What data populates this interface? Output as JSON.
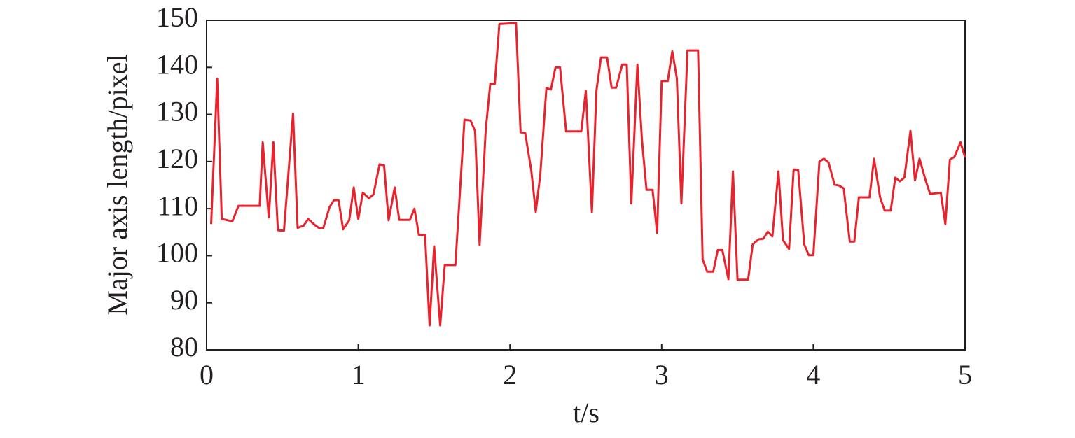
{
  "chart_data": {
    "type": "line",
    "xlabel": "t/s",
    "ylabel": "Major axis length/pixel",
    "x": [
      0.03,
      0.07,
      0.1,
      0.17,
      0.21,
      0.35,
      0.37,
      0.41,
      0.44,
      0.47,
      0.51,
      0.57,
      0.6,
      0.64,
      0.67,
      0.71,
      0.74,
      0.77,
      0.81,
      0.84,
      0.87,
      0.9,
      0.94,
      0.97,
      1.0,
      1.03,
      1.07,
      1.1,
      1.14,
      1.17,
      1.2,
      1.24,
      1.27,
      1.34,
      1.37,
      1.4,
      1.44,
      1.47,
      1.5,
      1.54,
      1.57,
      1.64,
      1.7,
      1.74,
      1.77,
      1.8,
      1.84,
      1.87,
      1.9,
      1.93,
      2.04,
      2.07,
      2.1,
      2.14,
      2.17,
      2.2,
      2.24,
      2.27,
      2.3,
      2.33,
      2.37,
      2.47,
      2.5,
      2.54,
      2.57,
      2.6,
      2.64,
      2.67,
      2.7,
      2.74,
      2.77,
      2.8,
      2.84,
      2.87,
      2.9,
      2.94,
      2.97,
      3.0,
      3.04,
      3.07,
      3.1,
      3.13,
      3.17,
      3.24,
      3.27,
      3.3,
      3.34,
      3.37,
      3.4,
      3.44,
      3.47,
      3.5,
      3.57,
      3.6,
      3.64,
      3.67,
      3.7,
      3.73,
      3.77,
      3.8,
      3.84,
      3.87,
      3.9,
      3.94,
      3.97,
      4.0,
      4.04,
      4.07,
      4.1,
      4.14,
      4.17,
      4.2,
      4.24,
      4.27,
      4.3,
      4.37,
      4.4,
      4.44,
      4.47,
      4.51,
      4.54,
      4.57,
      4.6,
      4.64,
      4.67,
      4.7,
      4.74,
      4.77,
      4.84,
      4.87,
      4.9,
      4.93,
      4.97,
      5.0
    ],
    "series": [
      {
        "color": "#e8232d",
        "values": [
          106.7,
          137.6,
          107.8,
          107.3,
          110.6,
          110.6,
          124.1,
          108.1,
          124.1,
          105.4,
          105.3,
          130.2,
          105.9,
          106.4,
          107.8,
          106.6,
          105.9,
          105.9,
          110.3,
          111.8,
          111.8,
          105.6,
          107.5,
          114.5,
          107.8,
          113.4,
          112.2,
          113.0,
          119.4,
          119.2,
          107.5,
          114.5,
          107.6,
          107.6,
          110.0,
          104.4,
          104.4,
          85.2,
          102.0,
          85.2,
          98.0,
          98.0,
          128.9,
          128.7,
          126.5,
          102.3,
          126.7,
          136.5,
          136.5,
          149.2,
          149.4,
          126.2,
          126.1,
          118.2,
          109.3,
          117.3,
          135.6,
          135.3,
          140.0,
          140.0,
          126.4,
          126.4,
          135.0,
          109.3,
          135.1,
          142.1,
          142.1,
          135.7,
          135.7,
          140.6,
          140.6,
          111.1,
          140.6,
          124.6,
          114.0,
          114.0,
          104.8,
          137.1,
          137.1,
          143.4,
          137.7,
          111.1,
          143.6,
          143.6,
          99.2,
          96.6,
          96.6,
          101.2,
          101.2,
          95.0,
          117.9,
          94.9,
          94.9,
          102.4,
          103.5,
          103.6,
          105.1,
          104.1,
          117.9,
          103.3,
          101.4,
          118.3,
          118.2,
          102.4,
          100.1,
          100.1,
          120.0,
          120.6,
          119.8,
          115.1,
          114.9,
          114.3,
          103.0,
          103.0,
          112.4,
          112.4,
          120.6,
          112.4,
          109.6,
          109.6,
          116.6,
          115.8,
          116.6,
          126.5,
          116.0,
          120.6,
          116.0,
          113.1,
          113.4,
          106.7,
          120.4,
          121.0,
          124.1,
          120.9
        ]
      }
    ],
    "xlim": [
      0,
      5
    ],
    "xticks": [
      0,
      1,
      2,
      3,
      4,
      5
    ],
    "ylim": [
      80,
      150
    ],
    "yticks": [
      80,
      90,
      100,
      110,
      120,
      130,
      140,
      150
    ]
  }
}
